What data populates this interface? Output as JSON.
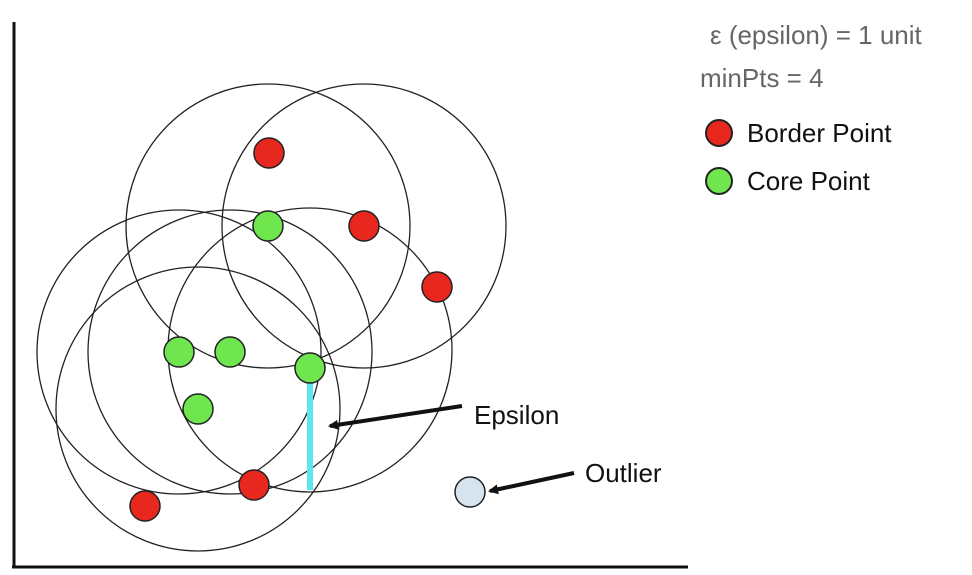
{
  "info": {
    "epsilon_text": "ε (epsilon) = 1 unit",
    "minpts_text": "minPts = 4"
  },
  "legend": [
    {
      "label": "Border Point",
      "color": "#e8281e"
    },
    {
      "label": "Core Point",
      "color": "#6fe64d"
    }
  ],
  "annotations": {
    "epsilon_label": "Epsilon",
    "outlier_label": "Outlier"
  },
  "colors": {
    "border_point": "#e8281e",
    "core_point": "#6fe64d",
    "outlier_point": "#d6e4f0",
    "epsilon_line": "#5ee6f0",
    "circle_stroke": "#222222",
    "axis": "#111111"
  }
}
